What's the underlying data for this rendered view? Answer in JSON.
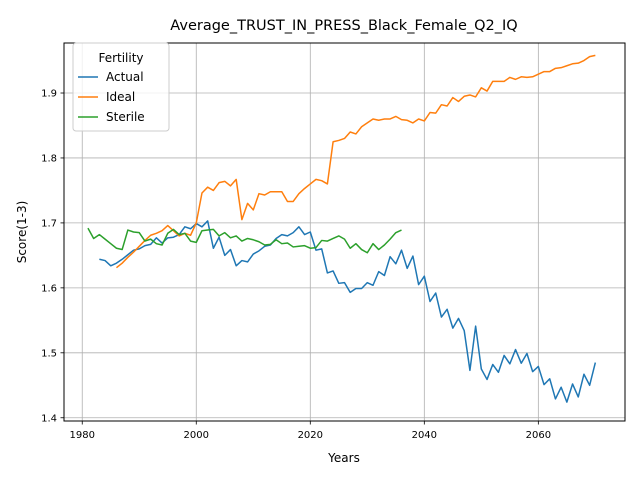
{
  "chart_data": {
    "type": "line",
    "title": "Average_TRUST_IN_PRESS_Black_Female_Q2_IQ",
    "xlabel": "Years",
    "ylabel": "Score(1-3)",
    "xlim": [
      1976.8,
      2075.2
    ],
    "ylim": [
      1.395,
      1.977
    ],
    "xticks": [
      1980,
      2000,
      2020,
      2040,
      2060
    ],
    "yticks": [
      1.4,
      1.5,
      1.6,
      1.7,
      1.8,
      1.9
    ],
    "ytick_labels": [
      "1.4",
      "1.5",
      "1.6",
      "1.7",
      "1.8",
      "1.9"
    ],
    "grid": true,
    "legend": {
      "title": "Fertility",
      "placement": "top-left"
    },
    "series": [
      {
        "name": "Actual",
        "color": "#1f77b4",
        "x": [
          1983,
          1984,
          1985,
          1986,
          1987,
          1988,
          1989,
          1990,
          1991,
          1992,
          1993,
          1994,
          1995,
          1996,
          1997,
          1998,
          1999,
          2000,
          2001,
          2002,
          2003,
          2004,
          2005,
          2006,
          2007,
          2008,
          2009,
          2010,
          2011,
          2012,
          2013,
          2014,
          2015,
          2016,
          2017,
          2018,
          2019,
          2020,
          2021,
          2022,
          2023,
          2024,
          2025,
          2026,
          2027,
          2028,
          2029,
          2030,
          2031,
          2032,
          2033,
          2034,
          2035,
          2036,
          2037,
          2038,
          2039,
          2040,
          2041,
          2042,
          2043,
          2044,
          2045,
          2046,
          2047,
          2048,
          2049,
          2050,
          2051,
          2052,
          2053,
          2054,
          2055,
          2056,
          2057,
          2058,
          2059,
          2060,
          2061,
          2062,
          2063,
          2064,
          2065,
          2066,
          2067,
          2068,
          2069,
          2070
        ],
        "values": [
          1.644,
          1.642,
          1.634,
          1.638,
          1.644,
          1.651,
          1.658,
          1.66,
          1.665,
          1.667,
          1.677,
          1.669,
          1.677,
          1.678,
          1.682,
          1.694,
          1.691,
          1.699,
          1.694,
          1.703,
          1.661,
          1.678,
          1.65,
          1.659,
          1.634,
          1.642,
          1.64,
          1.652,
          1.657,
          1.664,
          1.666,
          1.676,
          1.682,
          1.68,
          1.685,
          1.694,
          1.682,
          1.686,
          1.658,
          1.66,
          1.623,
          1.626,
          1.607,
          1.608,
          1.593,
          1.599,
          1.599,
          1.608,
          1.604,
          1.625,
          1.619,
          1.648,
          1.637,
          1.658,
          1.63,
          1.649,
          1.605,
          1.618,
          1.579,
          1.592,
          1.555,
          1.567,
          1.538,
          1.553,
          1.534,
          1.473,
          1.541,
          1.475,
          1.459,
          1.482,
          1.47,
          1.496,
          1.483,
          1.505,
          1.484,
          1.499,
          1.471,
          1.479,
          1.451,
          1.46,
          1.429,
          1.447,
          1.424,
          1.452,
          1.432,
          1.467,
          1.45,
          1.485
        ]
      },
      {
        "name": "Ideal",
        "color": "#ff7f0e",
        "x": [
          1986,
          1987,
          1988,
          1989,
          1990,
          1991,
          1992,
          1993,
          1994,
          1995,
          1996,
          1997,
          1998,
          1999,
          2000,
          2001,
          2002,
          2003,
          2004,
          2005,
          2006,
          2007,
          2008,
          2009,
          2010,
          2011,
          2012,
          2013,
          2014,
          2015,
          2016,
          2017,
          2018,
          2019,
          2020,
          2021,
          2022,
          2023,
          2024,
          2025,
          2026,
          2027,
          2028,
          2029,
          2030,
          2031,
          2032,
          2033,
          2034,
          2035,
          2036,
          2037,
          2038,
          2039,
          2040,
          2041,
          2042,
          2043,
          2044,
          2045,
          2046,
          2047,
          2048,
          2049,
          2050,
          2051,
          2052,
          2053,
          2054,
          2055,
          2056,
          2057,
          2058,
          2059,
          2060,
          2061,
          2062,
          2063,
          2064,
          2065,
          2066,
          2067,
          2068,
          2069,
          2070
        ],
        "values": [
          1.631,
          1.638,
          1.647,
          1.655,
          1.664,
          1.673,
          1.681,
          1.684,
          1.688,
          1.696,
          1.688,
          1.68,
          1.684,
          1.681,
          1.7,
          1.746,
          1.755,
          1.75,
          1.762,
          1.764,
          1.757,
          1.767,
          1.705,
          1.73,
          1.72,
          1.745,
          1.743,
          1.748,
          1.748,
          1.748,
          1.733,
          1.733,
          1.745,
          1.753,
          1.76,
          1.767,
          1.765,
          1.76,
          1.825,
          1.827,
          1.83,
          1.84,
          1.837,
          1.848,
          1.854,
          1.86,
          1.858,
          1.86,
          1.86,
          1.864,
          1.859,
          1.858,
          1.854,
          1.86,
          1.857,
          1.87,
          1.869,
          1.882,
          1.88,
          1.893,
          1.887,
          1.895,
          1.897,
          1.894,
          1.908,
          1.903,
          1.918,
          1.918,
          1.918,
          1.924,
          1.921,
          1.925,
          1.924,
          1.925,
          1.929,
          1.933,
          1.933,
          1.938,
          1.939,
          1.942,
          1.945,
          1.946,
          1.95,
          1.956,
          1.958
        ]
      },
      {
        "name": "Sterile",
        "color": "#2ca02c",
        "x": [
          1981,
          1982,
          1983,
          1984,
          1985,
          1986,
          1987,
          1988,
          1989,
          1990,
          1991,
          1992,
          1993,
          1994,
          1995,
          1996,
          1997,
          1998,
          1999,
          2000,
          2001,
          2002,
          2003,
          2004,
          2005,
          2006,
          2007,
          2008,
          2009,
          2010,
          2011,
          2012,
          2013,
          2014,
          2015,
          2016,
          2017,
          2018,
          2019,
          2020,
          2021,
          2022,
          2023,
          2024,
          2025,
          2026,
          2027,
          2028,
          2029,
          2030,
          2031,
          2032,
          2033,
          2034,
          2035,
          2036
        ],
        "values": [
          1.692,
          1.676,
          1.682,
          1.675,
          1.668,
          1.661,
          1.659,
          1.689,
          1.686,
          1.685,
          1.672,
          1.675,
          1.668,
          1.666,
          1.684,
          1.69,
          1.682,
          1.684,
          1.672,
          1.67,
          1.688,
          1.689,
          1.69,
          1.68,
          1.685,
          1.677,
          1.68,
          1.672,
          1.676,
          1.674,
          1.671,
          1.666,
          1.667,
          1.674,
          1.668,
          1.669,
          1.663,
          1.664,
          1.665,
          1.661,
          1.662,
          1.673,
          1.672,
          1.676,
          1.68,
          1.675,
          1.661,
          1.668,
          1.659,
          1.654,
          1.668,
          1.659,
          1.666,
          1.675,
          1.685,
          1.689
        ]
      }
    ]
  }
}
